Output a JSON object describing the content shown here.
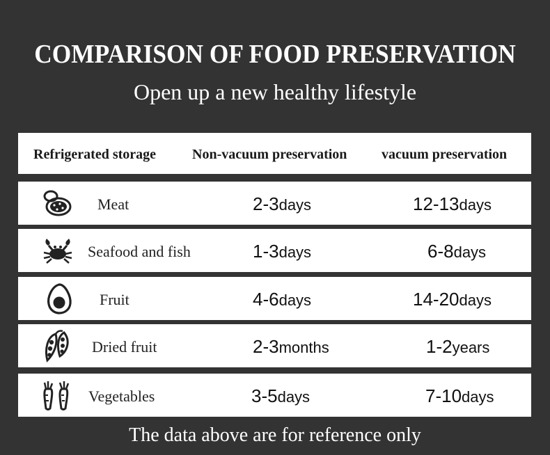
{
  "title": "COMPARISON OF FOOD PRESERVATION",
  "subtitle": "Open up a new healthy lifestyle",
  "header": {
    "col1": "Refrigerated storage",
    "col2": "Non-vacuum preservation",
    "col3": "vacuum preservation"
  },
  "rows": [
    {
      "icon": "meat-icon",
      "name": "Meat",
      "non_num": "2-3",
      "non_unit": "days",
      "vac_num": "12-13",
      "vac_unit": "days"
    },
    {
      "icon": "crab-icon",
      "name": "Seafood and fish",
      "non_num": "1-3",
      "non_unit": "days",
      "vac_num": "6-8",
      "vac_unit": "days"
    },
    {
      "icon": "avocado-icon",
      "name": "Fruit",
      "non_num": "4-6",
      "non_unit": "days",
      "vac_num": "14-20",
      "vac_unit": "days"
    },
    {
      "icon": "peapod-icon",
      "name": "Dried fruit",
      "non_num": "2-3",
      "non_unit": "months",
      "vac_num": "1-2",
      "vac_unit": "years"
    },
    {
      "icon": "carrot-icon",
      "name": "Vegetables",
      "non_num": "3-5",
      "non_unit": "days",
      "vac_num": "7-10",
      "vac_unit": "days"
    }
  ],
  "footer": "The data above are for reference only",
  "colors": {
    "background": "#333333",
    "row": "#ffffff",
    "text": "#111111"
  }
}
